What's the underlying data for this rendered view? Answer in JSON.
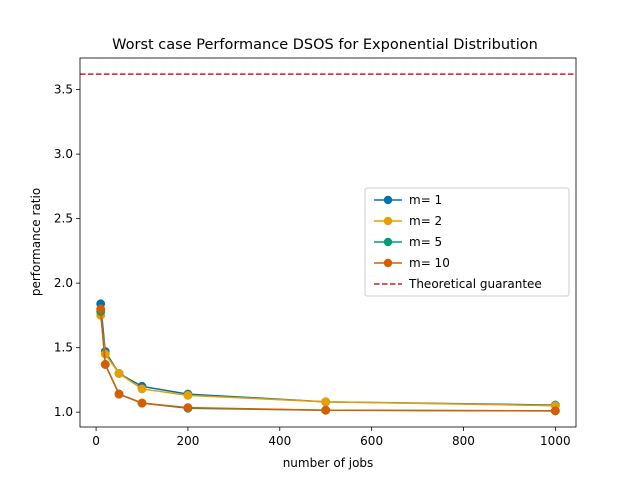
{
  "chart_data": {
    "type": "line",
    "title": "Worst case Performance DSOS for Exponential Distribution",
    "xlabel": "number of jobs",
    "ylabel": "performance ratio",
    "xlim": [
      -35,
      1045
    ],
    "ylim": [
      0.885,
      3.745
    ],
    "xticks": [
      0,
      200,
      400,
      600,
      800,
      1000
    ],
    "xtick_labels": [
      "0",
      "200",
      "400",
      "600",
      "800",
      "1000"
    ],
    "yticks": [
      1.0,
      1.5,
      2.0,
      2.5,
      3.0,
      3.5
    ],
    "ytick_labels": [
      "1.0",
      "1.5",
      "2.0",
      "2.5",
      "3.0",
      "3.5"
    ],
    "grid": false,
    "legend_position": "center-right",
    "x": [
      10,
      20,
      50,
      100,
      200,
      500,
      1000
    ],
    "series": [
      {
        "name": "m= 1",
        "color": "#0072B2",
        "values": [
          1.84,
          1.47,
          1.3,
          1.2,
          1.14,
          1.08,
          1.055
        ]
      },
      {
        "name": "m= 2",
        "color": "#E69F00",
        "values": [
          1.75,
          1.45,
          1.3,
          1.18,
          1.13,
          1.08,
          1.05
        ]
      },
      {
        "name": "m= 5",
        "color": "#009E73",
        "values": [
          1.78,
          1.37,
          1.14,
          1.07,
          1.03,
          1.015,
          1.01
        ]
      },
      {
        "name": "m= 10",
        "color": "#D55E00",
        "values": [
          1.8,
          1.37,
          1.14,
          1.07,
          1.035,
          1.015,
          1.01
        ]
      }
    ],
    "reference_line": {
      "name": "Theoretical guarantee",
      "y": 3.62,
      "color": "#e41a1c",
      "style": "dashed"
    }
  }
}
